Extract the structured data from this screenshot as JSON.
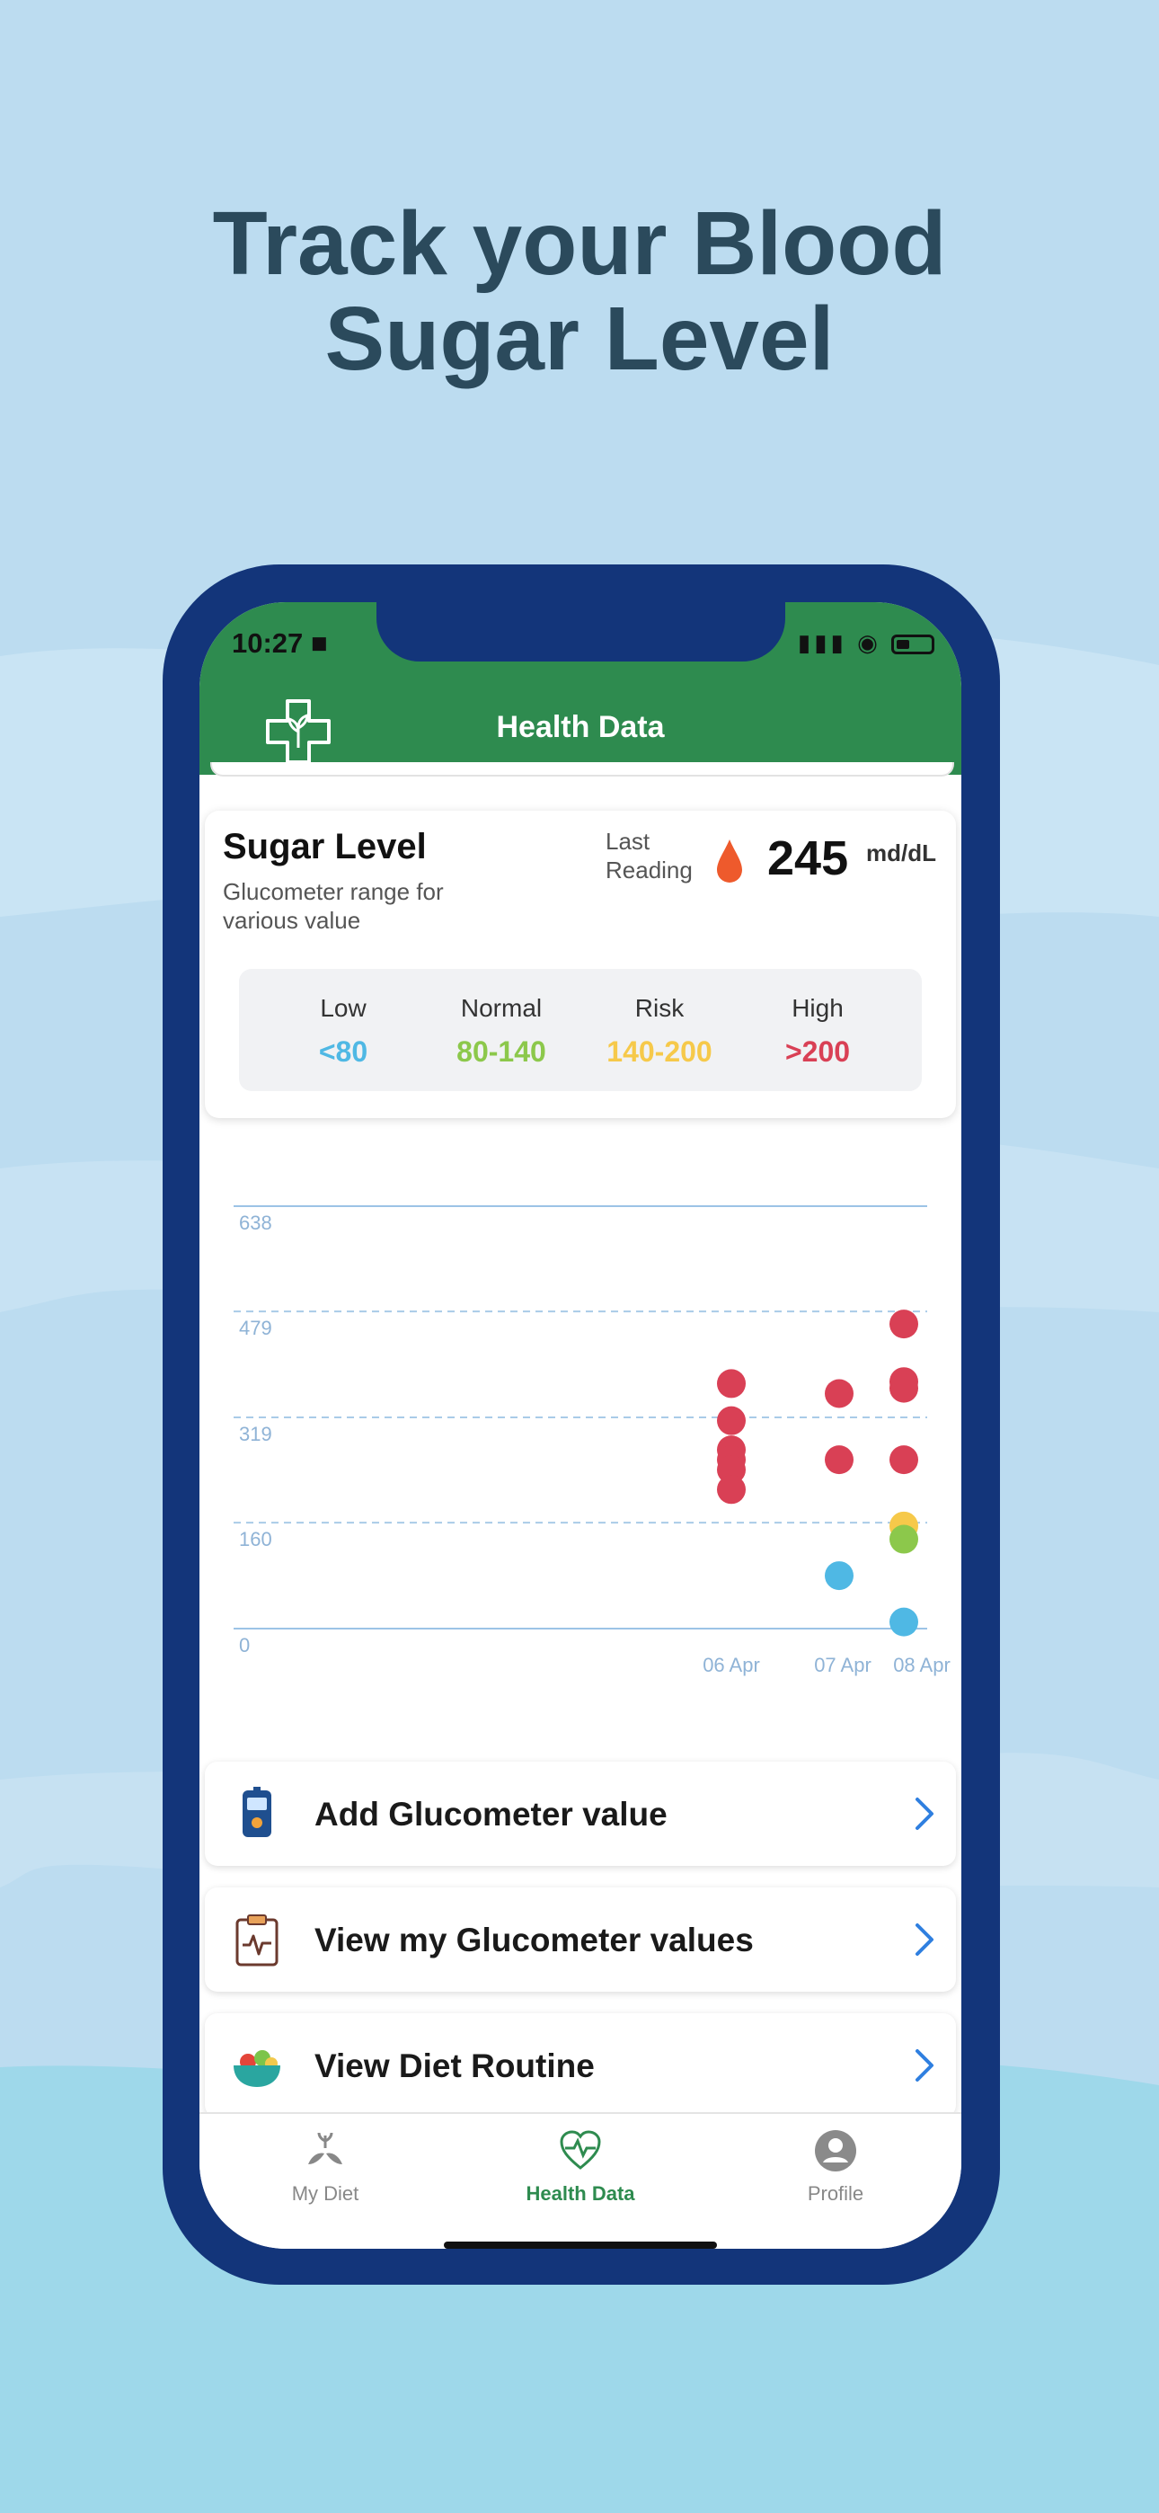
{
  "headline": {
    "line1": "Track your Blood",
    "line2": "Sugar Level"
  },
  "status_bar": {
    "time": "10:27"
  },
  "header": {
    "title": "Health Data",
    "logo_icon": "medical-cross-plant-icon"
  },
  "sugar_card": {
    "title": "Sugar Level",
    "subtitle": "Glucometer range for various value",
    "last_reading_label": "Last Reading",
    "last_reading_value": "245",
    "unit": "md/dL",
    "ranges": [
      {
        "label": "Low",
        "value": "<80",
        "color": "#4fb8e4"
      },
      {
        "label": "Normal",
        "value": "80-140",
        "color": "#8cc84b"
      },
      {
        "label": "Risk",
        "value": "140-200",
        "color": "#f6c94a"
      },
      {
        "label": "High",
        "value": ">200",
        "color": "#d94055"
      }
    ]
  },
  "chart_data": {
    "type": "scatter",
    "ylim": [
      0,
      638
    ],
    "y_ticks": [
      "0",
      "160",
      "319",
      "479",
      "638"
    ],
    "categories": [
      "06 Apr",
      "07 Apr",
      "08 Apr"
    ],
    "points": [
      {
        "x": "06 Apr",
        "y": 370,
        "color": "#d94055"
      },
      {
        "x": "06 Apr",
        "y": 314,
        "color": "#d94055"
      },
      {
        "x": "06 Apr",
        "y": 270,
        "color": "#d94055"
      },
      {
        "x": "06 Apr",
        "y": 255,
        "color": "#d94055"
      },
      {
        "x": "06 Apr",
        "y": 240,
        "color": "#d94055"
      },
      {
        "x": "06 Apr",
        "y": 210,
        "color": "#d94055"
      },
      {
        "x": "07 Apr",
        "y": 355,
        "color": "#d94055"
      },
      {
        "x": "07 Apr",
        "y": 255,
        "color": "#d94055"
      },
      {
        "x": "07 Apr",
        "y": 80,
        "color": "#4fb8e4"
      },
      {
        "x": "08 Apr",
        "y": 460,
        "color": "#d94055"
      },
      {
        "x": "08 Apr",
        "y": 373,
        "color": "#d94055"
      },
      {
        "x": "08 Apr",
        "y": 363,
        "color": "#d94055"
      },
      {
        "x": "08 Apr",
        "y": 255,
        "color": "#d94055"
      },
      {
        "x": "08 Apr",
        "y": 155,
        "color": "#f6c94a"
      },
      {
        "x": "08 Apr",
        "y": 135,
        "color": "#8cc84b"
      },
      {
        "x": "08 Apr",
        "y": 10,
        "color": "#4fb8e4"
      }
    ]
  },
  "menu": [
    {
      "label": "Add Glucometer value",
      "icon": "glucometer-icon"
    },
    {
      "label": "View my Glucometer values",
      "icon": "clipboard-pulse-icon"
    },
    {
      "label": "View Diet Routine",
      "icon": "salad-bowl-icon"
    }
  ],
  "tabs": [
    {
      "label": "My Diet",
      "icon": "diet-plant-icon",
      "active": false
    },
    {
      "label": "Health Data",
      "icon": "heart-pulse-icon",
      "active": true
    },
    {
      "label": "Profile",
      "icon": "profile-icon",
      "active": false
    }
  ],
  "colors": {
    "accent_green": "#2e8b4f",
    "frame_navy": "#13357a",
    "chevron_blue": "#2f7fe0"
  }
}
